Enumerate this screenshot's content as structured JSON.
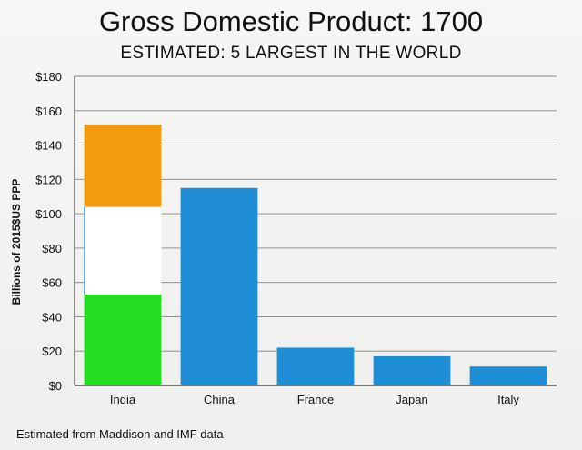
{
  "slide": {
    "title": "Gross Domestic Product: 1700",
    "subtitle": "ESTIMATED: 5 LARGEST IN THE WORLD",
    "footnote": "Estimated from Maddison and IMF data"
  },
  "chart_data": {
    "type": "bar",
    "title": "Gross Domestic Product: 1700",
    "subtitle": "ESTIMATED: 5 LARGEST IN THE WORLD",
    "xlabel": "",
    "ylabel": "Billions of 2015$US PPP",
    "ylim": [
      0,
      180
    ],
    "yticks": [
      0,
      20,
      40,
      60,
      80,
      100,
      120,
      140,
      160,
      180
    ],
    "ytick_labels": [
      "$0",
      "$20",
      "$40",
      "$60",
      "$80",
      "$100",
      "$120",
      "$140",
      "$160",
      "$180"
    ],
    "grid": true,
    "categories": [
      "India",
      "China",
      "France",
      "Japan",
      "Italy"
    ],
    "values": [
      152,
      115,
      22,
      17,
      11
    ],
    "india_flag_bands": [
      {
        "from": 0,
        "to": 53,
        "color": "#22dd22"
      },
      {
        "from": 53,
        "to": 104,
        "color": "#ffffff"
      },
      {
        "from": 104,
        "to": 152,
        "color": "#f39a0e"
      }
    ],
    "bar_color": "#1f8ed6"
  }
}
